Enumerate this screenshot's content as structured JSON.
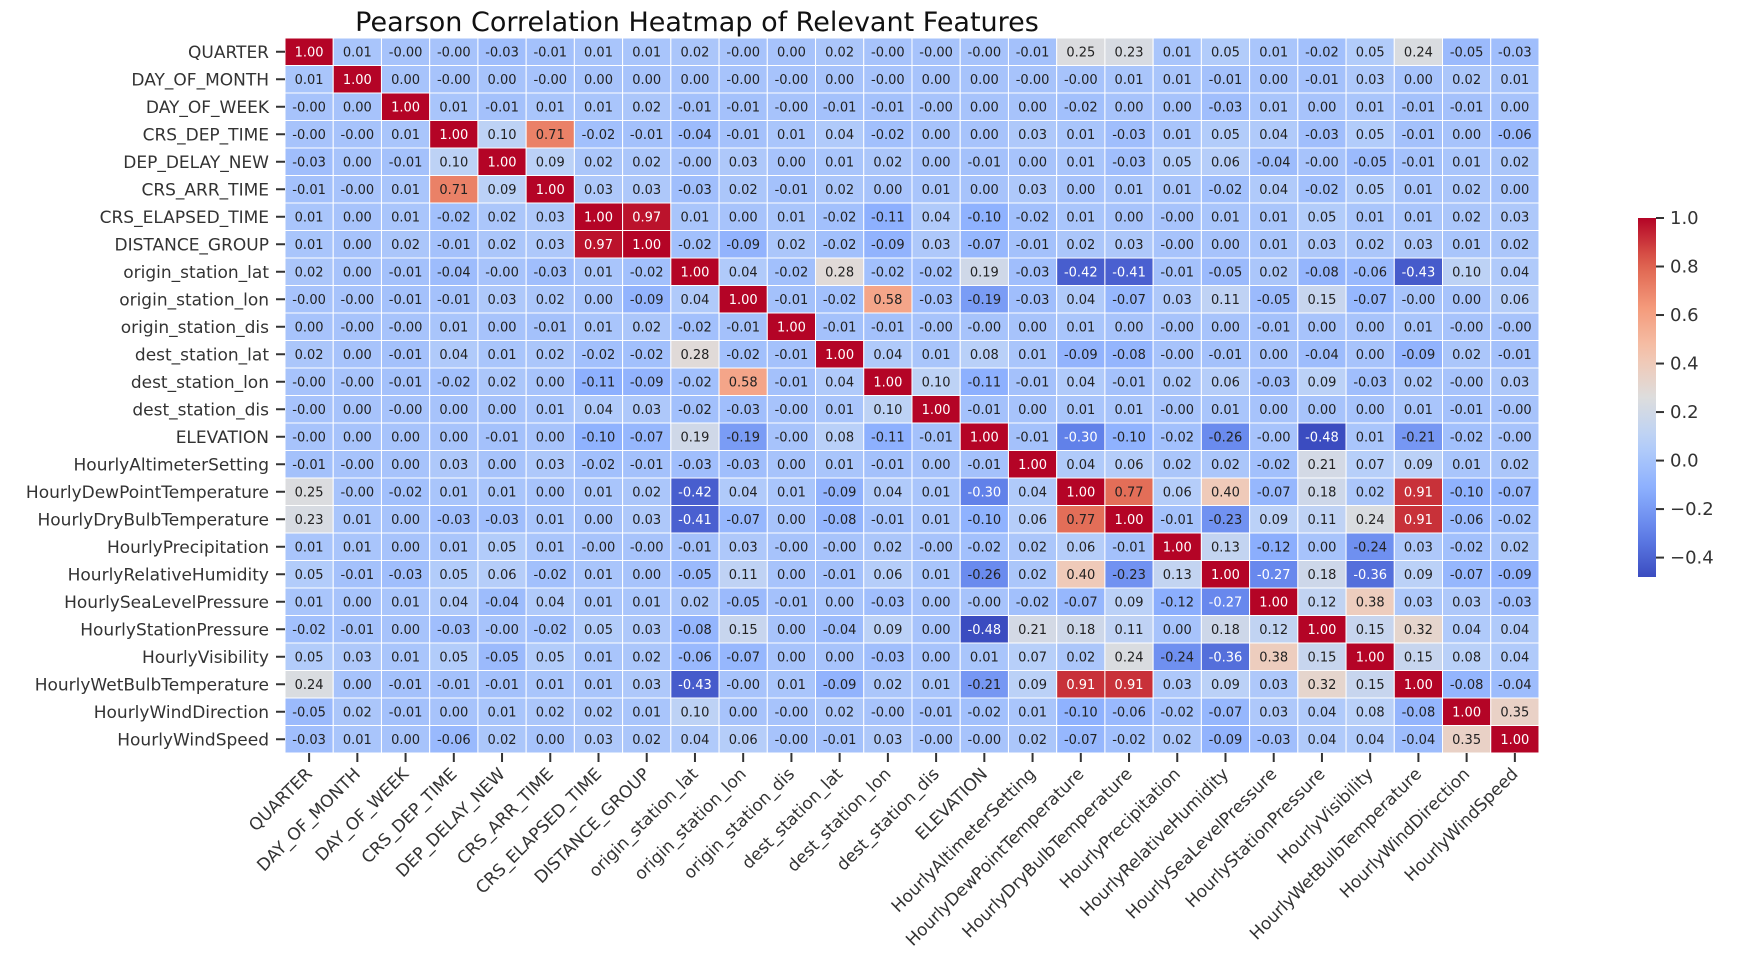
{
  "chart_data": {
    "type": "heatmap",
    "title": "Pearson Correlation Heatmap of Relevant Features",
    "colormap": "coolwarm",
    "vmin": -0.48,
    "vmax": 1.0,
    "value_format": "2 decimals",
    "labels": [
      "QUARTER",
      "DAY_OF_MONTH",
      "DAY_OF_WEEK",
      "CRS_DEP_TIME",
      "DEP_DELAY_NEW",
      "CRS_ARR_TIME",
      "CRS_ELAPSED_TIME",
      "DISTANCE_GROUP",
      "origin_station_lat",
      "origin_station_lon",
      "origin_station_dis",
      "dest_station_lat",
      "dest_station_lon",
      "dest_station_dis",
      "ELEVATION",
      "HourlyAltimeterSetting",
      "HourlyDewPointTemperature",
      "HourlyDryBulbTemperature",
      "HourlyPrecipitation",
      "HourlyRelativeHumidity",
      "HourlySeaLevelPressure",
      "HourlyStationPressure",
      "HourlyVisibility",
      "HourlyWetBulbTemperature",
      "HourlyWindDirection",
      "HourlyWindSpeed"
    ],
    "colorbar_ticks": [
      "1.0",
      "0.8",
      "0.6",
      "0.4",
      "0.2",
      "0.0",
      "−0.2",
      "−0.4"
    ],
    "colorbar_tick_values": [
      1.0,
      0.8,
      0.6,
      0.4,
      0.2,
      0.0,
      -0.2,
      -0.4
    ],
    "matrix": [
      [
        1.0,
        0.01,
        -0.0,
        -0.0,
        -0.03,
        -0.01,
        0.01,
        0.01,
        0.02,
        -0.0,
        0.0,
        0.02,
        -0.0,
        -0.0,
        -0.0,
        -0.01,
        0.25,
        0.23,
        0.01,
        0.05,
        0.01,
        -0.02,
        0.05,
        0.24,
        -0.05,
        -0.03
      ],
      [
        0.01,
        1.0,
        0.0,
        -0.0,
        0.0,
        -0.0,
        0.0,
        0.0,
        0.0,
        -0.0,
        -0.0,
        0.0,
        -0.0,
        0.0,
        0.0,
        -0.0,
        -0.0,
        0.01,
        0.01,
        -0.01,
        0.0,
        -0.01,
        0.03,
        0.0,
        0.02,
        0.01
      ],
      [
        -0.0,
        0.0,
        1.0,
        0.01,
        -0.01,
        0.01,
        0.01,
        0.02,
        -0.01,
        -0.01,
        -0.0,
        -0.01,
        -0.01,
        -0.0,
        0.0,
        0.0,
        -0.02,
        0.0,
        0.0,
        -0.03,
        0.01,
        0.0,
        0.01,
        -0.01,
        -0.01,
        0.0
      ],
      [
        -0.0,
        -0.0,
        0.01,
        1.0,
        0.1,
        0.71,
        -0.02,
        -0.01,
        -0.04,
        -0.01,
        0.01,
        0.04,
        -0.02,
        0.0,
        0.0,
        0.03,
        0.01,
        -0.03,
        0.01,
        0.05,
        0.04,
        -0.03,
        0.05,
        -0.01,
        0.0,
        -0.06
      ],
      [
        -0.03,
        0.0,
        -0.01,
        0.1,
        1.0,
        0.09,
        0.02,
        0.02,
        -0.0,
        0.03,
        0.0,
        0.01,
        0.02,
        0.0,
        -0.01,
        0.0,
        0.01,
        -0.03,
        0.05,
        0.06,
        -0.04,
        -0.0,
        -0.05,
        -0.01,
        0.01,
        0.02
      ],
      [
        -0.01,
        -0.0,
        0.01,
        0.71,
        0.09,
        1.0,
        0.03,
        0.03,
        -0.03,
        0.02,
        -0.01,
        0.02,
        0.0,
        0.01,
        0.0,
        0.03,
        0.0,
        0.01,
        0.01,
        -0.02,
        0.04,
        -0.02,
        0.05,
        0.01,
        0.02,
        0.0
      ],
      [
        0.01,
        0.0,
        0.01,
        -0.02,
        0.02,
        0.03,
        1.0,
        0.97,
        0.01,
        0.0,
        0.01,
        -0.02,
        -0.11,
        0.04,
        -0.1,
        -0.02,
        0.01,
        0.0,
        -0.0,
        0.01,
        0.01,
        0.05,
        0.01,
        0.01,
        0.02,
        0.03
      ],
      [
        0.01,
        0.0,
        0.02,
        -0.01,
        0.02,
        0.03,
        0.97,
        1.0,
        -0.02,
        -0.09,
        0.02,
        -0.02,
        -0.09,
        0.03,
        -0.07,
        -0.01,
        0.02,
        0.03,
        -0.0,
        0.0,
        0.01,
        0.03,
        0.02,
        0.03,
        0.01,
        0.02
      ],
      [
        0.02,
        0.0,
        -0.01,
        -0.04,
        -0.0,
        -0.03,
        0.01,
        -0.02,
        1.0,
        0.04,
        -0.02,
        0.28,
        -0.02,
        -0.02,
        0.19,
        -0.03,
        -0.42,
        -0.41,
        -0.01,
        -0.05,
        0.02,
        -0.08,
        -0.06,
        -0.43,
        0.1,
        0.04
      ],
      [
        -0.0,
        -0.0,
        -0.01,
        -0.01,
        0.03,
        0.02,
        0.0,
        -0.09,
        0.04,
        1.0,
        -0.01,
        -0.02,
        0.58,
        -0.03,
        -0.19,
        -0.03,
        0.04,
        -0.07,
        0.03,
        0.11,
        -0.05,
        0.15,
        -0.07,
        -0.0,
        0.0,
        0.06
      ],
      [
        0.0,
        -0.0,
        -0.0,
        0.01,
        0.0,
        -0.01,
        0.01,
        0.02,
        -0.02,
        -0.01,
        1.0,
        -0.01,
        -0.01,
        -0.0,
        -0.0,
        0.0,
        0.01,
        0.0,
        -0.0,
        0.0,
        -0.01,
        0.0,
        0.0,
        0.01,
        -0.0,
        -0.0
      ],
      [
        0.02,
        0.0,
        -0.01,
        0.04,
        0.01,
        0.02,
        -0.02,
        -0.02,
        0.28,
        -0.02,
        -0.01,
        1.0,
        0.04,
        0.01,
        0.08,
        0.01,
        -0.09,
        -0.08,
        -0.0,
        -0.01,
        0.0,
        -0.04,
        0.0,
        -0.09,
        0.02,
        -0.01
      ],
      [
        -0.0,
        -0.0,
        -0.01,
        -0.02,
        0.02,
        0.0,
        -0.11,
        -0.09,
        -0.02,
        0.58,
        -0.01,
        0.04,
        1.0,
        0.1,
        -0.11,
        -0.01,
        0.04,
        -0.01,
        0.02,
        0.06,
        -0.03,
        0.09,
        -0.03,
        0.02,
        -0.0,
        0.03
      ],
      [
        -0.0,
        0.0,
        -0.0,
        0.0,
        0.0,
        0.01,
        0.04,
        0.03,
        -0.02,
        -0.03,
        -0.0,
        0.01,
        0.1,
        1.0,
        -0.01,
        0.0,
        0.01,
        0.01,
        -0.0,
        0.01,
        0.0,
        0.0,
        0.0,
        0.01,
        -0.01,
        -0.0
      ],
      [
        -0.0,
        0.0,
        0.0,
        0.0,
        -0.01,
        0.0,
        -0.1,
        -0.07,
        0.19,
        -0.19,
        -0.0,
        0.08,
        -0.11,
        -0.01,
        1.0,
        -0.01,
        -0.3,
        -0.1,
        -0.02,
        -0.26,
        -0.0,
        -0.48,
        0.01,
        -0.21,
        -0.02,
        -0.0
      ],
      [
        -0.01,
        -0.0,
        0.0,
        0.03,
        0.0,
        0.03,
        -0.02,
        -0.01,
        -0.03,
        -0.03,
        0.0,
        0.01,
        -0.01,
        0.0,
        -0.01,
        1.0,
        0.04,
        0.06,
        0.02,
        0.02,
        -0.02,
        0.21,
        0.07,
        0.09,
        0.01,
        0.02
      ],
      [
        0.25,
        -0.0,
        -0.02,
        0.01,
        0.01,
        0.0,
        0.01,
        0.02,
        -0.42,
        0.04,
        0.01,
        -0.09,
        0.04,
        0.01,
        -0.3,
        0.04,
        1.0,
        0.77,
        0.06,
        0.4,
        -0.07,
        0.18,
        0.02,
        0.91,
        -0.1,
        -0.07
      ],
      [
        0.23,
        0.01,
        0.0,
        -0.03,
        -0.03,
        0.01,
        0.0,
        0.03,
        -0.41,
        -0.07,
        0.0,
        -0.08,
        -0.01,
        0.01,
        -0.1,
        0.06,
        0.77,
        1.0,
        -0.01,
        -0.23,
        0.09,
        0.11,
        0.24,
        0.91,
        -0.06,
        -0.02
      ],
      [
        0.01,
        0.01,
        0.0,
        0.01,
        0.05,
        0.01,
        -0.0,
        -0.0,
        -0.01,
        0.03,
        -0.0,
        -0.0,
        0.02,
        -0.0,
        -0.02,
        0.02,
        0.06,
        -0.01,
        1.0,
        0.13,
        -0.12,
        0.0,
        -0.24,
        0.03,
        -0.02,
        0.02
      ],
      [
        0.05,
        -0.01,
        -0.03,
        0.05,
        0.06,
        -0.02,
        0.01,
        0.0,
        -0.05,
        0.11,
        0.0,
        -0.01,
        0.06,
        0.01,
        -0.26,
        0.02,
        0.4,
        -0.23,
        0.13,
        1.0,
        -0.27,
        0.18,
        -0.36,
        0.09,
        -0.07,
        -0.09
      ],
      [
        0.01,
        0.0,
        0.01,
        0.04,
        -0.04,
        0.04,
        0.01,
        0.01,
        0.02,
        -0.05,
        -0.01,
        0.0,
        -0.03,
        0.0,
        -0.0,
        -0.02,
        -0.07,
        0.09,
        -0.12,
        -0.27,
        1.0,
        0.12,
        0.38,
        0.03,
        0.03,
        -0.03
      ],
      [
        -0.02,
        -0.01,
        0.0,
        -0.03,
        -0.0,
        -0.02,
        0.05,
        0.03,
        -0.08,
        0.15,
        0.0,
        -0.04,
        0.09,
        0.0,
        -0.48,
        0.21,
        0.18,
        0.11,
        0.0,
        0.18,
        0.12,
        1.0,
        0.15,
        0.32,
        0.04,
        0.04
      ],
      [
        0.05,
        0.03,
        0.01,
        0.05,
        -0.05,
        0.05,
        0.01,
        0.02,
        -0.06,
        -0.07,
        0.0,
        0.0,
        -0.03,
        0.0,
        0.01,
        0.07,
        0.02,
        0.24,
        -0.24,
        -0.36,
        0.38,
        0.15,
        1.0,
        0.15,
        0.08,
        0.04
      ],
      [
        0.24,
        0.0,
        -0.01,
        -0.01,
        -0.01,
        0.01,
        0.01,
        0.03,
        -0.43,
        -0.0,
        0.01,
        -0.09,
        0.02,
        0.01,
        -0.21,
        0.09,
        0.91,
        0.91,
        0.03,
        0.09,
        0.03,
        0.32,
        0.15,
        1.0,
        -0.08,
        -0.04
      ],
      [
        -0.05,
        0.02,
        -0.01,
        0.0,
        0.01,
        0.02,
        0.02,
        0.01,
        0.1,
        0.0,
        -0.0,
        0.02,
        -0.0,
        -0.01,
        -0.02,
        0.01,
        -0.1,
        -0.06,
        -0.02,
        -0.07,
        0.03,
        0.04,
        0.08,
        -0.08,
        1.0,
        0.35
      ],
      [
        -0.03,
        0.01,
        0.0,
        -0.06,
        0.02,
        0.0,
        0.03,
        0.02,
        0.04,
        0.06,
        -0.0,
        -0.01,
        0.03,
        -0.0,
        -0.0,
        0.02,
        -0.07,
        -0.02,
        0.02,
        -0.09,
        -0.03,
        0.04,
        0.04,
        -0.04,
        0.35,
        1.0
      ]
    ]
  }
}
